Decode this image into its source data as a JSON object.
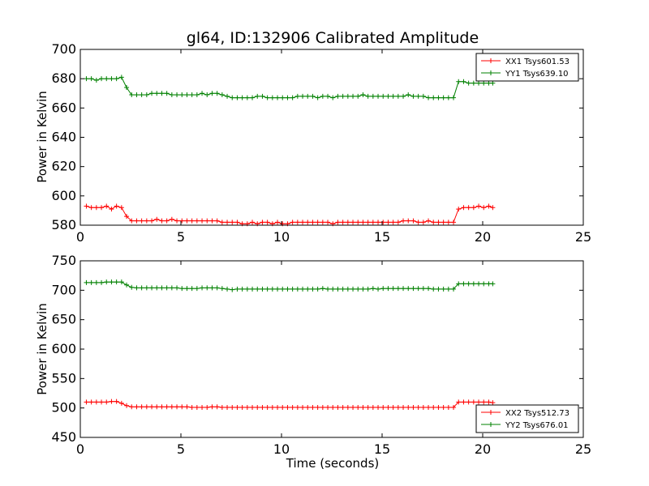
{
  "chart_data": [
    {
      "type": "line",
      "title": "gl64, ID:132906 Calibrated Amplitude",
      "xlabel": "",
      "ylabel": "Power in Kelvin",
      "xlim": [
        0,
        25
      ],
      "ylim": [
        580,
        700
      ],
      "xticks": [
        "0",
        "5",
        "10",
        "15",
        "20",
        "25"
      ],
      "yticks": [
        "580",
        "600",
        "620",
        "640",
        "660",
        "680",
        "700"
      ],
      "grid": false,
      "legend_position": "top-right",
      "series": [
        {
          "name": "XX1 Tsys601.53",
          "color": "#ff0000",
          "x": [
            0.3,
            0.55,
            0.8,
            1.05,
            1.3,
            1.55,
            1.8,
            2.05,
            2.3,
            2.55,
            2.8,
            3.05,
            3.3,
            3.55,
            3.8,
            4.05,
            4.3,
            4.55,
            4.8,
            5.05,
            5.3,
            5.55,
            5.8,
            6.05,
            6.3,
            6.55,
            6.8,
            7.05,
            7.3,
            7.55,
            7.8,
            8.05,
            8.3,
            8.55,
            8.8,
            9.05,
            9.3,
            9.55,
            9.8,
            10.05,
            10.3,
            10.55,
            10.8,
            11.05,
            11.3,
            11.55,
            11.8,
            12.05,
            12.3,
            12.55,
            12.8,
            13.05,
            13.3,
            13.55,
            13.8,
            14.05,
            14.3,
            14.55,
            14.8,
            15.05,
            15.3,
            15.55,
            15.8,
            16.05,
            16.3,
            16.55,
            16.8,
            17.05,
            17.3,
            17.55,
            17.8,
            18.05,
            18.3,
            18.55,
            18.8,
            19.05,
            19.3,
            19.55,
            19.8,
            20.05,
            20.3,
            20.5
          ],
          "y": [
            593,
            592,
            592,
            592,
            593,
            591,
            593,
            592,
            586,
            583,
            583,
            583,
            583,
            583,
            584,
            583,
            583,
            584,
            583,
            583,
            583,
            583,
            583,
            583,
            583,
            583,
            583,
            582,
            582,
            582,
            582,
            581,
            581,
            582,
            581,
            582,
            582,
            581,
            582,
            581,
            581,
            582,
            582,
            582,
            582,
            582,
            582,
            582,
            582,
            581,
            582,
            582,
            582,
            582,
            582,
            582,
            582,
            582,
            582,
            582,
            582,
            582,
            582,
            583,
            583,
            583,
            582,
            582,
            583,
            582,
            582,
            582,
            582,
            582,
            591,
            592,
            592,
            592,
            593,
            592,
            593,
            592
          ]
        },
        {
          "name": "YY1 Tsys639.10",
          "color": "#008000",
          "x": [
            0.3,
            0.55,
            0.8,
            1.05,
            1.3,
            1.55,
            1.8,
            2.05,
            2.3,
            2.55,
            2.8,
            3.05,
            3.3,
            3.55,
            3.8,
            4.05,
            4.3,
            4.55,
            4.8,
            5.05,
            5.3,
            5.55,
            5.8,
            6.05,
            6.3,
            6.55,
            6.8,
            7.05,
            7.3,
            7.55,
            7.8,
            8.05,
            8.3,
            8.55,
            8.8,
            9.05,
            9.3,
            9.55,
            9.8,
            10.05,
            10.3,
            10.55,
            10.8,
            11.05,
            11.3,
            11.55,
            11.8,
            12.05,
            12.3,
            12.55,
            12.8,
            13.05,
            13.3,
            13.55,
            13.8,
            14.05,
            14.3,
            14.55,
            14.8,
            15.05,
            15.3,
            15.55,
            15.8,
            16.05,
            16.3,
            16.55,
            16.8,
            17.05,
            17.3,
            17.55,
            17.8,
            18.05,
            18.3,
            18.55,
            18.8,
            19.05,
            19.3,
            19.55,
            19.8,
            20.05,
            20.3,
            20.5
          ],
          "y": [
            680,
            680,
            679,
            680,
            680,
            680,
            680,
            681,
            674,
            669,
            669,
            669,
            669,
            670,
            670,
            670,
            670,
            669,
            669,
            669,
            669,
            669,
            669,
            670,
            669,
            670,
            670,
            669,
            668,
            667,
            667,
            667,
            667,
            667,
            668,
            668,
            667,
            667,
            667,
            667,
            667,
            667,
            668,
            668,
            668,
            668,
            667,
            668,
            668,
            667,
            668,
            668,
            668,
            668,
            668,
            669,
            668,
            668,
            668,
            668,
            668,
            668,
            668,
            668,
            669,
            668,
            668,
            668,
            667,
            667,
            667,
            667,
            667,
            667,
            678,
            678,
            677,
            677,
            677,
            677,
            677,
            677
          ]
        }
      ]
    },
    {
      "type": "line",
      "title": "",
      "xlabel": "Time (seconds)",
      "ylabel": "Power in Kelvin",
      "xlim": [
        0,
        25
      ],
      "ylim": [
        450,
        750
      ],
      "xticks": [
        "0",
        "5",
        "10",
        "15",
        "20",
        "25"
      ],
      "yticks": [
        "450",
        "500",
        "550",
        "600",
        "650",
        "700",
        "750"
      ],
      "grid": false,
      "legend_position": "bottom-right",
      "series": [
        {
          "name": "XX2 Tsys512.73",
          "color": "#ff0000",
          "x": [
            0.3,
            0.55,
            0.8,
            1.05,
            1.3,
            1.55,
            1.8,
            2.05,
            2.3,
            2.55,
            2.8,
            3.05,
            3.3,
            3.55,
            3.8,
            4.05,
            4.3,
            4.55,
            4.8,
            5.05,
            5.3,
            5.55,
            5.8,
            6.05,
            6.3,
            6.55,
            6.8,
            7.05,
            7.3,
            7.55,
            7.8,
            8.05,
            8.3,
            8.55,
            8.8,
            9.05,
            9.3,
            9.55,
            9.8,
            10.05,
            10.3,
            10.55,
            10.8,
            11.05,
            11.3,
            11.55,
            11.8,
            12.05,
            12.3,
            12.55,
            12.8,
            13.05,
            13.3,
            13.55,
            13.8,
            14.05,
            14.3,
            14.55,
            14.8,
            15.05,
            15.3,
            15.55,
            15.8,
            16.05,
            16.3,
            16.55,
            16.8,
            17.05,
            17.3,
            17.55,
            17.8,
            18.05,
            18.3,
            18.55,
            18.8,
            19.05,
            19.3,
            19.55,
            19.8,
            20.05,
            20.3,
            20.5
          ],
          "y": [
            510,
            510,
            510,
            510,
            510,
            511,
            511,
            508,
            504,
            502,
            502,
            502,
            502,
            502,
            502,
            502,
            502,
            502,
            502,
            502,
            502,
            501,
            501,
            501,
            501,
            502,
            502,
            501,
            501,
            501,
            501,
            501,
            501,
            501,
            501,
            501,
            501,
            501,
            501,
            501,
            501,
            501,
            501,
            501,
            501,
            501,
            501,
            501,
            501,
            501,
            501,
            501,
            501,
            501,
            501,
            501,
            501,
            501,
            501,
            501,
            501,
            501,
            501,
            501,
            501,
            501,
            501,
            501,
            501,
            501,
            501,
            501,
            501,
            501,
            510,
            510,
            510,
            510,
            510,
            510,
            510,
            509
          ]
        },
        {
          "name": "YY2 Tsys676.01",
          "color": "#008000",
          "x": [
            0.3,
            0.55,
            0.8,
            1.05,
            1.3,
            1.55,
            1.8,
            2.05,
            2.3,
            2.55,
            2.8,
            3.05,
            3.3,
            3.55,
            3.8,
            4.05,
            4.3,
            4.55,
            4.8,
            5.05,
            5.3,
            5.55,
            5.8,
            6.05,
            6.3,
            6.55,
            6.8,
            7.05,
            7.3,
            7.55,
            7.8,
            8.05,
            8.3,
            8.55,
            8.8,
            9.05,
            9.3,
            9.55,
            9.8,
            10.05,
            10.3,
            10.55,
            10.8,
            11.05,
            11.3,
            11.55,
            11.8,
            12.05,
            12.3,
            12.55,
            12.8,
            13.05,
            13.3,
            13.55,
            13.8,
            14.05,
            14.3,
            14.55,
            14.8,
            15.05,
            15.3,
            15.55,
            15.8,
            16.05,
            16.3,
            16.55,
            16.8,
            17.05,
            17.3,
            17.55,
            17.8,
            18.05,
            18.3,
            18.55,
            18.8,
            19.05,
            19.3,
            19.55,
            19.8,
            20.05,
            20.3,
            20.5
          ],
          "y": [
            713,
            713,
            713,
            713,
            714,
            714,
            714,
            714,
            709,
            705,
            704,
            704,
            704,
            704,
            704,
            704,
            704,
            704,
            704,
            703,
            703,
            703,
            703,
            704,
            704,
            704,
            704,
            703,
            702,
            701,
            702,
            702,
            702,
            702,
            702,
            702,
            702,
            702,
            702,
            702,
            702,
            702,
            702,
            702,
            702,
            702,
            702,
            703,
            702,
            702,
            702,
            702,
            702,
            702,
            702,
            702,
            702,
            703,
            702,
            703,
            703,
            703,
            703,
            703,
            703,
            703,
            703,
            703,
            703,
            702,
            702,
            702,
            702,
            702,
            711,
            711,
            711,
            711,
            711,
            711,
            711,
            711
          ]
        }
      ]
    }
  ]
}
